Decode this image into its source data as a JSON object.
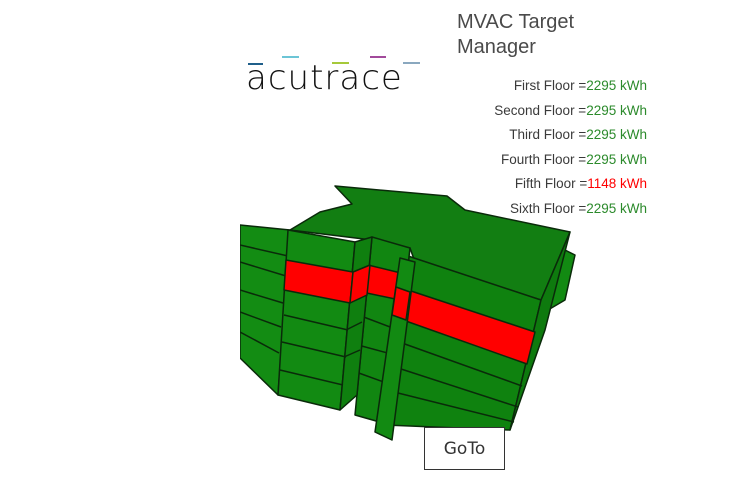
{
  "header": {
    "title": "MVAC Target Manager"
  },
  "logo": {
    "text": "acutrace",
    "dash_colors": [
      "#1f5f8a",
      "#6cc5d6",
      "#a6c93a",
      "#a24a9b",
      "#8aa8bf"
    ]
  },
  "floors": [
    {
      "label": "First Floor =",
      "value": "2295 kWh",
      "status": "ok"
    },
    {
      "label": "Second Floor =",
      "value": "2295 kWh",
      "status": "ok"
    },
    {
      "label": "Third Floor =",
      "value": "2295 kWh",
      "status": "ok"
    },
    {
      "label": "Fourth Floor =",
      "value": "2295 kWh",
      "status": "ok"
    },
    {
      "label": "Fifth Floor =",
      "value": "1148 kWh",
      "status": "bad"
    },
    {
      "label": "Sixth Floor =",
      "value": "2295 kWh",
      "status": "ok"
    }
  ],
  "colors": {
    "ok": "#2b8a2b",
    "bad": "#ff0000",
    "building": "#128a12",
    "highlight": "#ff0000"
  },
  "goto_label": "GoTo"
}
